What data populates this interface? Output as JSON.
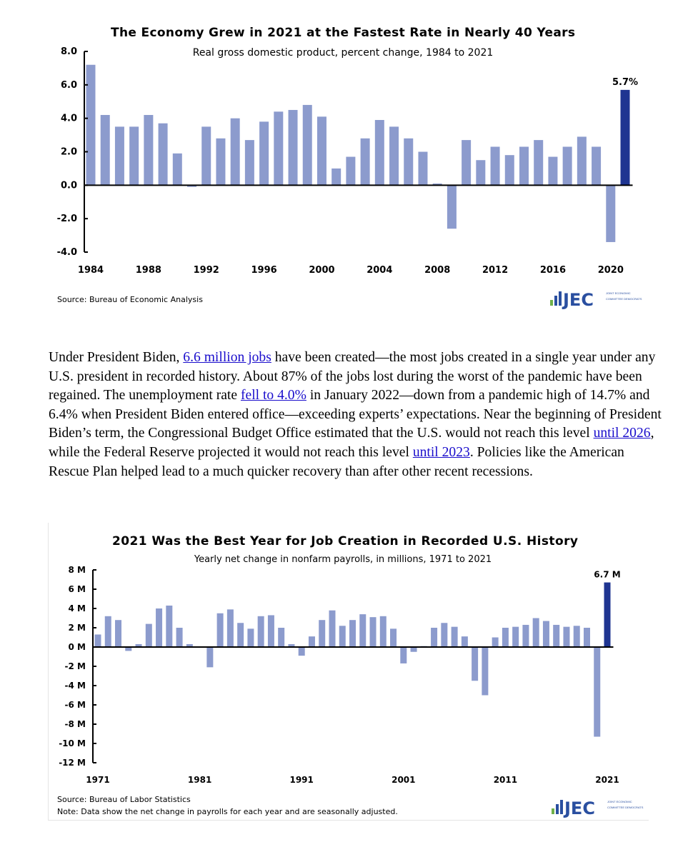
{
  "chart_data": [
    {
      "type": "bar",
      "title": "The Economy Grew in 2021 at the Fastest Rate in Nearly 40 Years",
      "subtitle": "Real gross domestic product, percent change, 1984 to 2021",
      "xlabel": "",
      "ylabel": "",
      "ylim": [
        -4,
        8
      ],
      "yticks": [
        "8.0",
        "6.0",
        "4.0",
        "2.0",
        "0.0",
        "-2.0",
        "-4.0"
      ],
      "ytick_values": [
        8,
        6,
        4,
        2,
        0,
        -2,
        -4
      ],
      "xticks": [
        "1984",
        "1988",
        "1992",
        "1996",
        "2000",
        "2004",
        "2008",
        "2012",
        "2016",
        "2020"
      ],
      "categories": [
        1984,
        1985,
        1986,
        1987,
        1988,
        1989,
        1990,
        1991,
        1992,
        1993,
        1994,
        1995,
        1996,
        1997,
        1998,
        1999,
        2000,
        2001,
        2002,
        2003,
        2004,
        2005,
        2006,
        2007,
        2008,
        2009,
        2010,
        2011,
        2012,
        2013,
        2014,
        2015,
        2016,
        2017,
        2018,
        2019,
        2020,
        2021
      ],
      "values": [
        7.2,
        4.2,
        3.5,
        3.5,
        4.2,
        3.7,
        1.9,
        -0.1,
        3.5,
        2.8,
        4.0,
        2.7,
        3.8,
        4.4,
        4.5,
        4.8,
        4.1,
        1.0,
        1.7,
        2.8,
        3.9,
        3.5,
        2.8,
        2.0,
        0.1,
        -2.6,
        2.7,
        1.5,
        2.3,
        1.8,
        2.3,
        2.7,
        1.7,
        2.3,
        2.9,
        2.3,
        -3.4,
        5.7
      ],
      "highlight_label": "5.7%",
      "grid": false,
      "bar_color": "#8c9bcd",
      "highlight_color": "#1f3591",
      "source": "Source: Bureau of Economic Analysis"
    },
    {
      "type": "bar",
      "title": "2021 Was the Best Year for Job Creation in Recorded U.S. History",
      "subtitle": "Yearly net change in nonfarm payrolls, in millions, 1971 to 2021",
      "xlabel": "",
      "ylabel": "",
      "ylim": [
        -12,
        8
      ],
      "yticks": [
        "8 M",
        "6 M",
        "4 M",
        "2 M",
        "0 M",
        "-2 M",
        "-4 M",
        "-6 M",
        "-8 M",
        "-10 M",
        "-12 M"
      ],
      "ytick_values": [
        8,
        6,
        4,
        2,
        0,
        -2,
        -4,
        -6,
        -8,
        -10,
        -12
      ],
      "xticks": [
        "1971",
        "1981",
        "1991",
        "2001",
        "2011",
        "2021"
      ],
      "categories": [
        1971,
        1972,
        1973,
        1974,
        1975,
        1976,
        1977,
        1978,
        1979,
        1980,
        1981,
        1982,
        1983,
        1984,
        1985,
        1986,
        1987,
        1988,
        1989,
        1990,
        1991,
        1992,
        1993,
        1994,
        1995,
        1996,
        1997,
        1998,
        1999,
        2000,
        2001,
        2002,
        2003,
        2004,
        2005,
        2006,
        2007,
        2008,
        2009,
        2010,
        2011,
        2012,
        2013,
        2014,
        2015,
        2016,
        2017,
        2018,
        2019,
        2020,
        2021
      ],
      "values": [
        1.3,
        3.2,
        2.8,
        -0.4,
        0.3,
        2.4,
        4.0,
        4.3,
        2.0,
        0.3,
        0.0,
        -2.1,
        3.5,
        3.9,
        2.5,
        1.9,
        3.2,
        3.3,
        2.0,
        0.3,
        -0.9,
        1.1,
        2.8,
        3.8,
        2.2,
        2.8,
        3.4,
        3.1,
        3.2,
        1.9,
        -1.7,
        -0.5,
        0.1,
        2.0,
        2.5,
        2.1,
        1.1,
        -3.5,
        -5.0,
        1.0,
        2.0,
        2.1,
        2.3,
        3.0,
        2.7,
        2.3,
        2.1,
        2.2,
        2.0,
        -9.3,
        6.7
      ],
      "highlight_label": "6.7 M",
      "grid": false,
      "bar_color": "#8c9bcd",
      "highlight_color": "#1f3591",
      "source": "Source: Bureau of Labor Statistics",
      "note": "Note: Data show the net change in payrolls for each year and are seasonally adjusted."
    }
  ],
  "logo": {
    "text": "JEC",
    "subtext": "JOINT ECONOMIC COMMITTEE DEMOCRATS"
  },
  "paragraph": {
    "p1": "Under President Biden, ",
    "link1": "6.6 million jobs",
    "p2": " have been created—the most jobs created in a single year under any U.S. president in recorded history. About 87% of the jobs lost during the worst of the pandemic have been regained. The unemployment rate ",
    "link2": "fell to 4.0%",
    "p3": " in January 2022—down from a pandemic high of 14.7% and 6.4% when President Biden entered office—exceeding experts’ expectations. Near the beginning of President Biden’s term, the Congressional Budget Office estimated that the U.S. would not reach this level ",
    "link3": "until 2026",
    "p4": ", while the Federal Reserve projected it would not reach this level ",
    "link4": "until 2023",
    "p5": ". Policies like the American Rescue Plan helped lead to a much quicker recovery than after other recent recessions."
  }
}
